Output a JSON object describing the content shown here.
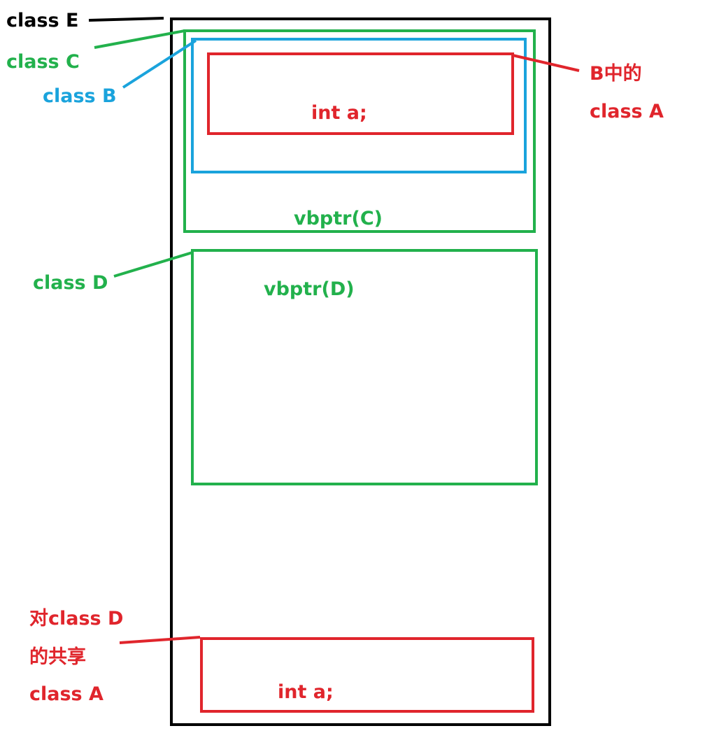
{
  "colors": {
    "black": "#000000",
    "green": "#22b14c",
    "blue": "#1aa3dc",
    "red": "#e0252c"
  },
  "labels": {
    "class_e": "class E",
    "class_c": "class C",
    "class_b": "class B",
    "class_d": "class D",
    "b_a_line1": "B中的",
    "b_a_line2": "class A",
    "shared_line1": "对class D",
    "shared_line2": "的共享",
    "shared_line3": "class A"
  },
  "members": {
    "a_in_b": "int a;",
    "vbptr_c": "vbptr(C)",
    "vbptr_d": "vbptr(D)",
    "shared_a": "int a;"
  }
}
